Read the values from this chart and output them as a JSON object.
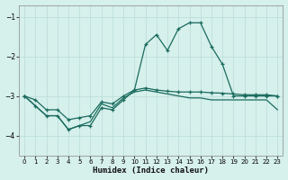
{
  "xlabel": "Humidex (Indice chaleur)",
  "bg_color": "#d6f0ec",
  "line_color": "#1a6b5e",
  "grid_color": "#b8ddd8",
  "x_values": [
    0,
    1,
    2,
    3,
    4,
    5,
    6,
    7,
    8,
    9,
    10,
    11,
    12,
    13,
    14,
    15,
    16,
    17,
    18,
    19,
    20,
    21,
    22,
    23
  ],
  "series1": [
    -3.0,
    -3.25,
    -3.5,
    -3.5,
    -3.85,
    -3.75,
    -3.75,
    -3.3,
    -3.35,
    -3.1,
    -2.85,
    -1.7,
    -1.45,
    -1.85,
    -1.3,
    -1.15,
    -1.15,
    -1.75,
    -2.2,
    -3.0,
    -3.0,
    -3.0,
    -3.0,
    -3.0
  ],
  "series2": [
    -3.0,
    -3.25,
    -3.5,
    -3.5,
    -3.85,
    -3.75,
    -3.65,
    -3.2,
    -3.3,
    -3.05,
    -2.9,
    -2.85,
    -2.9,
    -2.95,
    -3.0,
    -3.05,
    -3.05,
    -3.1,
    -3.1,
    -3.1,
    -3.1,
    -3.1,
    -3.1,
    -3.35
  ],
  "series3": [
    -3.0,
    -3.1,
    -3.35,
    -3.35,
    -3.6,
    -3.55,
    -3.5,
    -3.15,
    -3.2,
    -3.0,
    -2.85,
    -2.8,
    -2.85,
    -2.88,
    -2.9,
    -2.9,
    -2.9,
    -2.92,
    -2.93,
    -2.95,
    -2.97,
    -2.97,
    -2.97,
    -3.0
  ],
  "ylim": [
    -4.5,
    -0.7
  ],
  "yticks": [
    -4,
    -3,
    -2,
    -1
  ],
  "xticks": [
    0,
    1,
    2,
    3,
    4,
    5,
    6,
    7,
    8,
    9,
    10,
    11,
    12,
    13,
    14,
    15,
    16,
    17,
    18,
    19,
    20,
    21,
    22,
    23
  ]
}
